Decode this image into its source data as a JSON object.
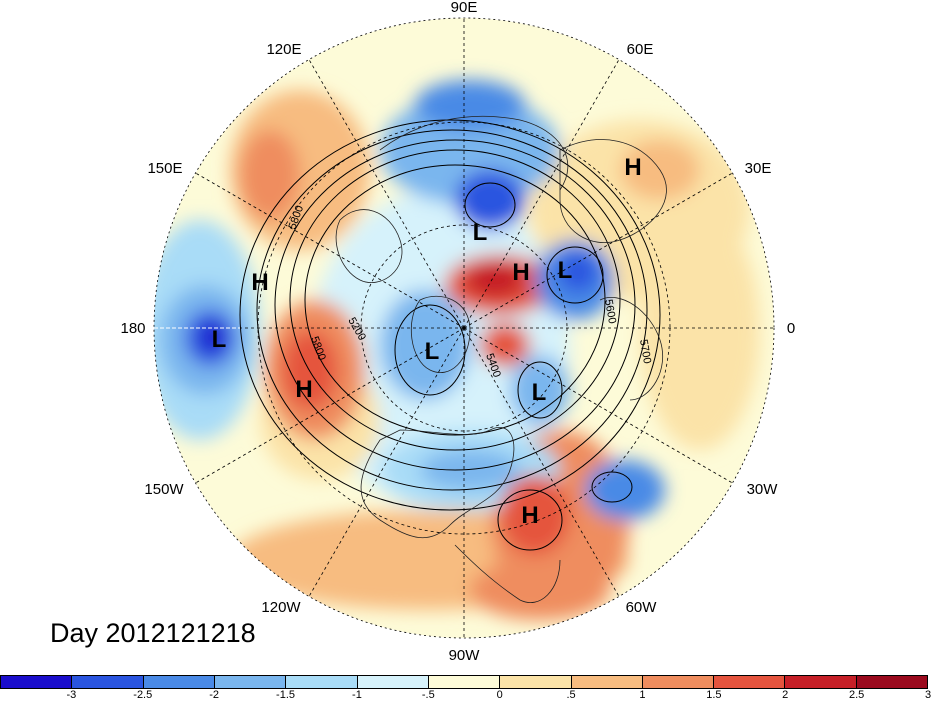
{
  "title": "Day 2012121218",
  "longitude_labels": {
    "lon_90e": "90E",
    "lon_60e": "60E",
    "lon_30e": "30E",
    "lon_0": "0",
    "lon_30w": "30W",
    "lon_60w": "60W",
    "lon_90w": "90W",
    "lon_120w": "120W",
    "lon_150w": "150W",
    "lon_180": "180",
    "lon_150e": "150E",
    "lon_120e": "120E"
  },
  "pressure_centers": [
    {
      "label": "H"
    },
    {
      "label": "H"
    },
    {
      "label": "H"
    },
    {
      "label": "H"
    },
    {
      "label": "H"
    },
    {
      "label": "L"
    },
    {
      "label": "L"
    },
    {
      "label": "L"
    },
    {
      "label": "L"
    },
    {
      "label": "L"
    }
  ],
  "contour_labels": [
    "5800",
    "5800",
    "5200",
    "5700",
    "5600",
    "5400"
  ],
  "colorbar": {
    "colors": [
      "#1a0dcc",
      "#2a55e0",
      "#4a8ae6",
      "#7ab6ee",
      "#a9dcf7",
      "#d6f2fb",
      "#fdfbd8",
      "#fbe3a8",
      "#f7bc80",
      "#ef8d5e",
      "#e5543e",
      "#c61f27",
      "#9b0a1e"
    ],
    "ticks": [
      "-3",
      "-2.5",
      "-2",
      "-1.5",
      "-1",
      "-.5",
      "0",
      ".5",
      "1",
      "1.5",
      "2",
      "2.5",
      "3"
    ]
  }
}
